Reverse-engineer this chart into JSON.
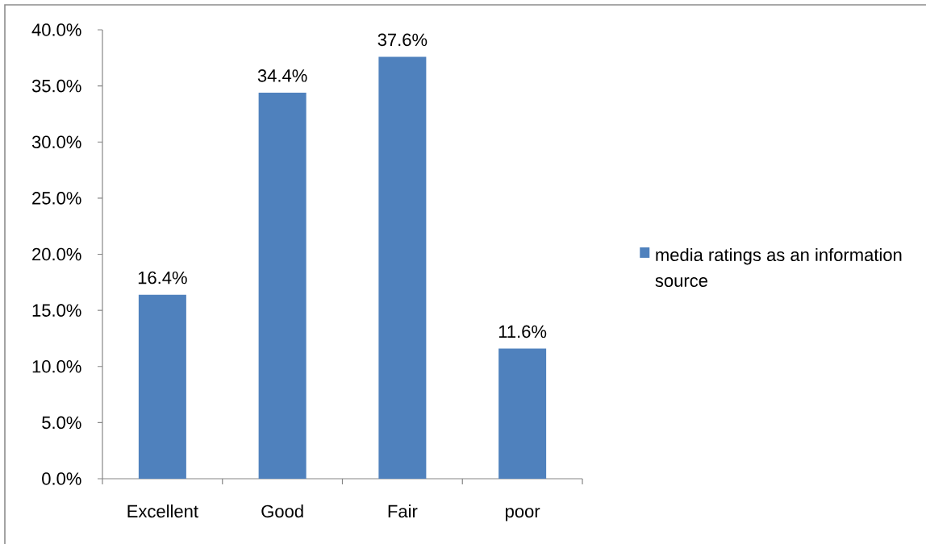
{
  "chart_data": {
    "type": "bar",
    "categories": [
      "Excellent",
      "Good",
      "Fair",
      "poor"
    ],
    "series": [
      {
        "name": "media ratings as an information source",
        "color": "#4f81bd",
        "values": [
          16.4,
          34.4,
          37.6,
          11.6
        ],
        "value_labels": [
          "16.4%",
          "34.4%",
          "37.6%",
          "11.6%"
        ]
      }
    ],
    "ylim": [
      0,
      40
    ],
    "yticks": [
      {
        "value": 0,
        "label": "0.0%"
      },
      {
        "value": 5,
        "label": "5.0%"
      },
      {
        "value": 10,
        "label": "10.0%"
      },
      {
        "value": 15,
        "label": "15.0%"
      },
      {
        "value": 20,
        "label": "20.0%"
      },
      {
        "value": 25,
        "label": "25.0%"
      },
      {
        "value": 30,
        "label": "30.0%"
      },
      {
        "value": 35,
        "label": "35.0%"
      },
      {
        "value": 40,
        "label": "40.0%"
      }
    ],
    "legend": "right"
  }
}
